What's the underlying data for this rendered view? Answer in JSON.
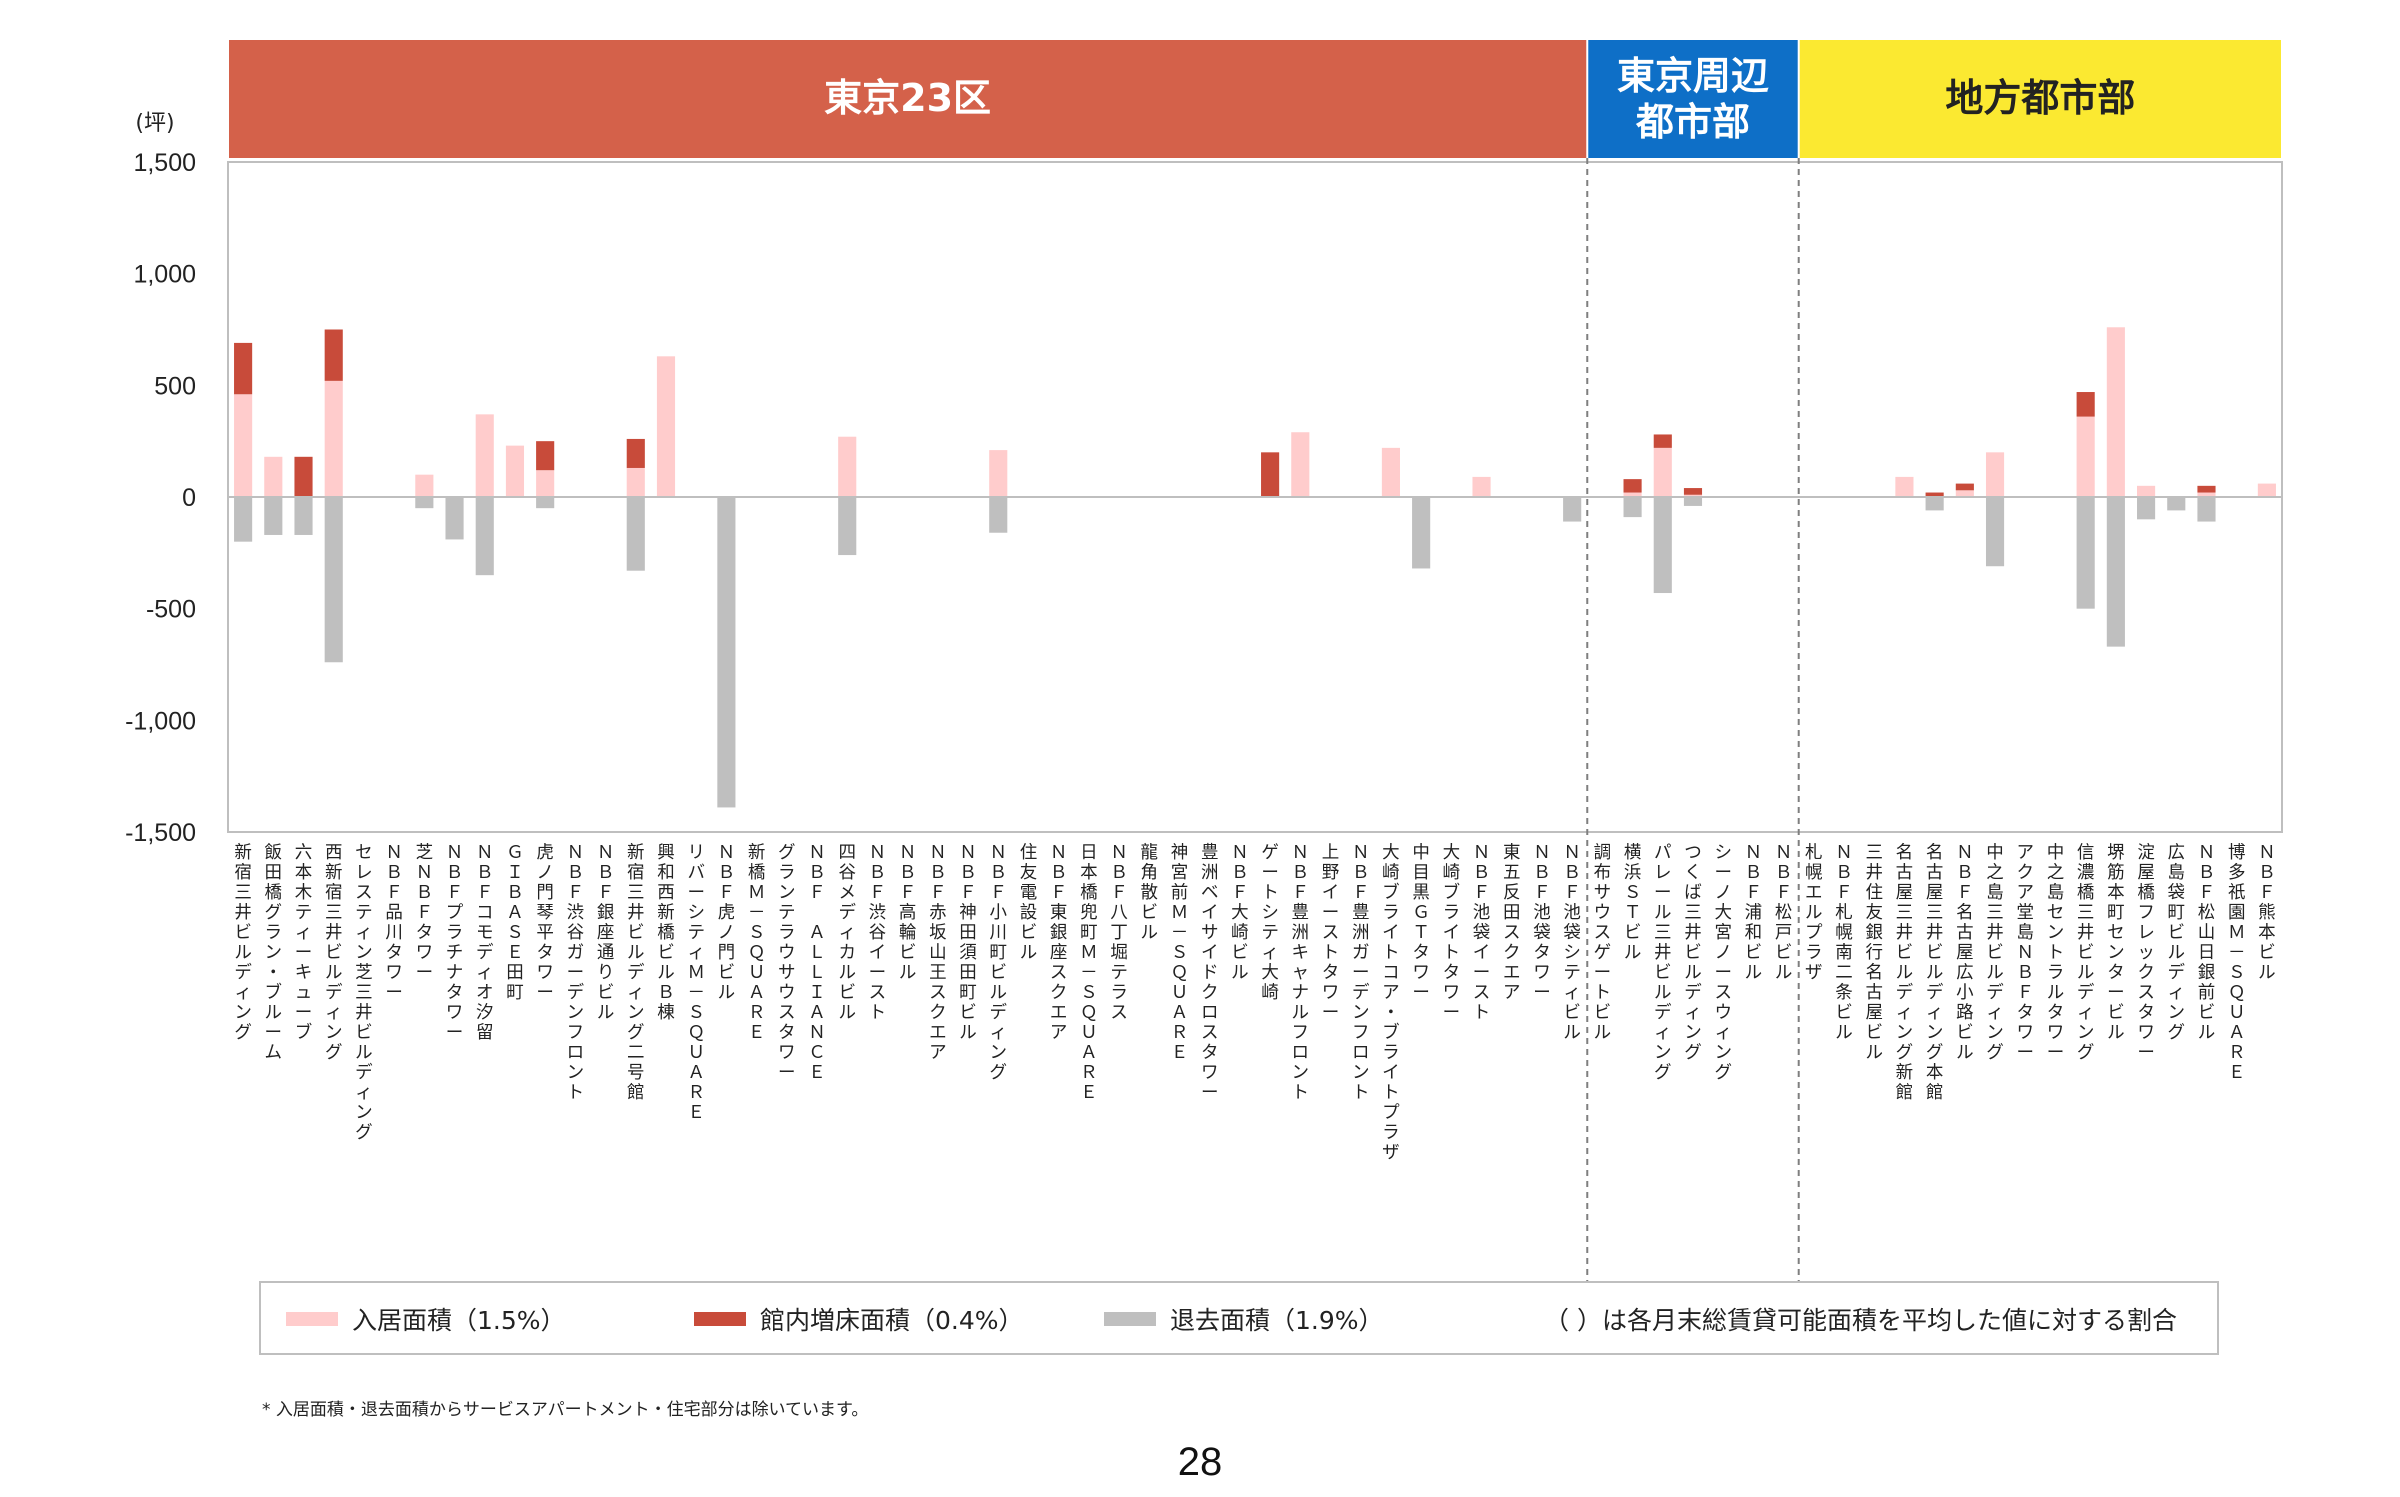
{
  "page_number": "28",
  "footnote": "* 入居面積・退去面積からサービスアパートメント・住宅部分は除いています。",
  "colors": {
    "move_in": "#FFCCCC",
    "expansion": "#C84B3A",
    "move_out": "#BFBFBF",
    "tokyo23": "#D4614A",
    "tokyo_surround": "#0E6FC7",
    "regional": "#FBE931"
  },
  "chart_data": {
    "type": "bar",
    "stacked": true,
    "ylabel": "(坪)",
    "ylim": [
      -1500,
      1500
    ],
    "yticks": [
      1500,
      1000,
      500,
      0,
      -500,
      -1000,
      -1500
    ],
    "ytick_labels": [
      "1,500",
      "1,000",
      "500",
      "0",
      "-500",
      "-1,000",
      "-1,500"
    ],
    "grid": false,
    "legend_position": "bottom",
    "legend": [
      {
        "key": "move_in",
        "label": "入居面積（1.5%）"
      },
      {
        "key": "expansion",
        "label": "館内増床面積（0.4%）"
      },
      {
        "key": "move_out",
        "label": "退去面積（1.9%）"
      }
    ],
    "legend_note": "（ ）は各月末総賃貸可能面積を平均した値に対する割合",
    "regions": [
      {
        "label": "東京23区",
        "start": 0,
        "end": 45
      },
      {
        "label": "東京周辺\n都市部",
        "start": 45,
        "end": 52
      },
      {
        "label": "地方都市部",
        "start": 52,
        "end": 68
      }
    ],
    "categories": [
      "新宿三井ビルディング",
      "飯田橋グラン・ブルーム",
      "六本木ティーキューブ",
      "西新宿三井ビルディング",
      "セレスティン芝三井ビルディング",
      "ＮＢＦ品川タワー",
      "芝ＮＢＦタワー",
      "ＮＢＦプラチナタワー",
      "ＮＢＦコモディオ汐留",
      "ＧＩＢＡＳＥ田町",
      "虎ノ門琴平タワー",
      "ＮＢＦ渋谷ガーデンフロント",
      "ＮＢＦ銀座通りビル",
      "新宿三井ビルディング二号館",
      "興和西新橋ビルＢ棟",
      "リバーシティＭ－ＳＱＵＡＲＥ",
      "ＮＢＦ虎ノ門ビル",
      "新橋Ｍ－ＳＱＵＡＲＥ",
      "グランテラウサウスタワー",
      "ＮＢＦ ＡＬＬＩＡＮＣＥ",
      "四谷メディカルビル",
      "ＮＢＦ渋谷イースト",
      "ＮＢＦ高輪ビル",
      "ＮＢＦ赤坂山王スクエア",
      "ＮＢＦ神田須田町ビル",
      "ＮＢＦ小川町ビルディング",
      "住友電設ビル",
      "ＮＢＦ東銀座スクエア",
      "日本橋兜町Ｍ－ＳＱＵＡＲＥ",
      "ＮＢＦ八丁堀テラス",
      "龍角散ビル",
      "神宮前Ｍ－ＳＱＵＡＲＥ",
      "豊洲ベイサイドクロスタワー",
      "ＮＢＦ大崎ビル",
      "ゲートシティ大崎",
      "ＮＢＦ豊洲キャナルフロント",
      "上野イーストタワー",
      "ＮＢＦ豊洲ガーデンフロント",
      "大崎ブライトコア・ブライトプラザ",
      "中目黒ＧＴタワー",
      "大崎ブライトタワー",
      "ＮＢＦ池袋イースト",
      "東五反田スクエア",
      "ＮＢＦ池袋タワー",
      "ＮＢＦ池袋シティビル",
      "調布サウスゲートビル",
      "横浜ＳＴビル",
      "パレール三井ビルディング",
      "つくば三井ビルディング",
      "シーノ大宮ノースウィング",
      "ＮＢＦ浦和ビル",
      "ＮＢＦ松戸ビル",
      "札幌エルプラザ",
      "ＮＢＦ札幌南二条ビル",
      "三井住友銀行名古屋ビル",
      "名古屋三井ビルディング新館",
      "名古屋三井ビルディング本館",
      "ＮＢＦ名古屋広小路ビル",
      "中之島三井ビルディング",
      "アクア堂島ＮＢＦタワー",
      "中之島セントラルタワー",
      "信濃橋三井ビルディング",
      "堺筋本町センタービル",
      "淀屋橋フレックスタワー",
      "広島袋町ビルディング",
      "ＮＢＦ松山日銀前ビル",
      "博多祇園Ｍ－ＳＱＵＡＲＥ",
      "ＮＢＦ熊本ビル"
    ],
    "series": [
      {
        "key": "move_in",
        "name": "入居面積（1.5%）",
        "values": [
          460,
          180,
          0,
          520,
          0,
          0,
          100,
          0,
          370,
          230,
          120,
          0,
          0,
          130,
          630,
          0,
          0,
          0,
          0,
          0,
          270,
          0,
          0,
          0,
          0,
          210,
          0,
          0,
          0,
          0,
          0,
          0,
          0,
          0,
          0,
          290,
          0,
          0,
          220,
          0,
          0,
          90,
          0,
          0,
          0,
          0,
          20,
          220,
          10,
          0,
          0,
          0,
          0,
          0,
          0,
          90,
          0,
          30,
          200,
          0,
          0,
          360,
          760,
          50,
          0,
          20,
          0,
          60
        ]
      },
      {
        "key": "expansion",
        "name": "館内増床面積（0.4%）",
        "values": [
          230,
          0,
          180,
          230,
          0,
          0,
          0,
          0,
          0,
          0,
          130,
          0,
          0,
          130,
          0,
          0,
          0,
          0,
          0,
          0,
          0,
          0,
          0,
          0,
          0,
          0,
          0,
          0,
          0,
          0,
          0,
          0,
          0,
          0,
          200,
          0,
          0,
          0,
          0,
          0,
          0,
          0,
          0,
          0,
          0,
          0,
          60,
          60,
          30,
          0,
          0,
          0,
          0,
          0,
          0,
          0,
          20,
          30,
          0,
          0,
          0,
          110,
          0,
          0,
          0,
          30,
          0,
          0
        ]
      },
      {
        "key": "move_out",
        "name": "退去面積（1.9%）",
        "values": [
          -200,
          -170,
          -170,
          -740,
          0,
          0,
          -50,
          -190,
          -350,
          0,
          -50,
          0,
          0,
          -330,
          0,
          0,
          -1390,
          0,
          0,
          0,
          -260,
          0,
          0,
          0,
          0,
          -160,
          0,
          0,
          0,
          0,
          0,
          0,
          0,
          0,
          0,
          0,
          0,
          0,
          0,
          -320,
          0,
          0,
          0,
          0,
          -110,
          0,
          -90,
          -430,
          -40,
          0,
          0,
          0,
          0,
          0,
          0,
          0,
          -60,
          0,
          -310,
          0,
          0,
          -500,
          -670,
          -100,
          -60,
          -110,
          0,
          0
        ]
      }
    ]
  }
}
